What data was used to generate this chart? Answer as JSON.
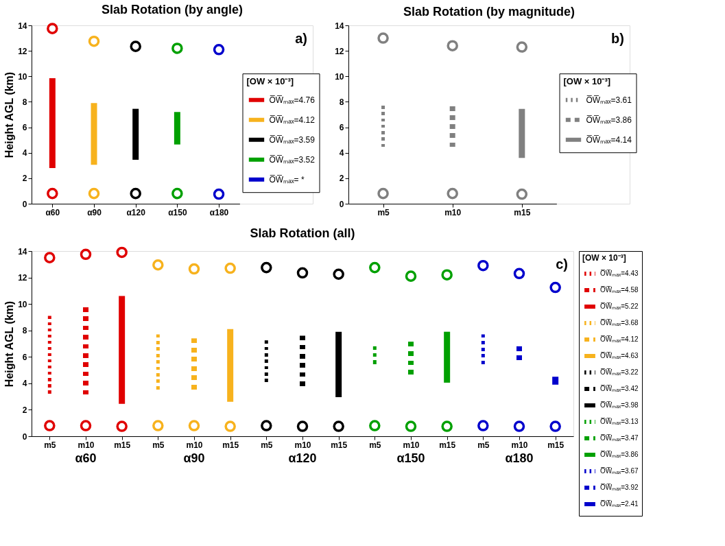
{
  "chart_data": [
    {
      "type": "bar",
      "title": "Slab Rotation (by angle)",
      "ylabel": "Height AGL (km)",
      "categories": [
        "α60",
        "α90",
        "α120",
        "α150",
        "α180"
      ],
      "ylim": [
        0,
        14
      ],
      "yticks": [
        0,
        2,
        4,
        6,
        8,
        10,
        12,
        14
      ],
      "legend": "right",
      "legend_title": "[OW × 10⁻³]",
      "annotations": [
        "a)"
      ],
      "series": [
        {
          "name": "O̅W̅ₘₐₓ=4.76",
          "color": "#e00000",
          "line_style": "solid",
          "base": [
            2.8,
            null,
            null,
            null,
            null
          ],
          "values": [
            7.05,
            null,
            null,
            null,
            null
          ]
        },
        {
          "name": "O̅W̅ₘₐₓ=4.12",
          "color": "#f7b21d",
          "line_style": "solid",
          "base": [
            null,
            3.05,
            null,
            null,
            null
          ],
          "values": [
            null,
            4.85,
            null,
            null,
            null
          ]
        },
        {
          "name": "O̅W̅ₘₐₓ=3.59",
          "color": "#000000",
          "line_style": "solid",
          "base": [
            null,
            null,
            3.45,
            null,
            null
          ],
          "values": [
            null,
            null,
            4.0,
            null,
            null
          ]
        },
        {
          "name": "O̅W̅ₘₐₓ=3.52",
          "color": "#00a000",
          "line_style": "solid",
          "base": [
            null,
            null,
            null,
            4.65,
            null
          ],
          "values": [
            null,
            null,
            null,
            2.55,
            null
          ]
        },
        {
          "name": "O̅W̅ₘₐₓ= *",
          "color": "#0000cc",
          "line_style": "solid",
          "base": [
            null,
            null,
            null,
            null,
            null
          ],
          "values": [
            null,
            null,
            null,
            null,
            null
          ]
        },
        {
          "type": "scatter",
          "marker": "circle",
          "colors": [
            "#e00000",
            "#f7b21d",
            "#000000",
            "#00a000",
            "#0000cc"
          ],
          "values": [
            13.75,
            12.75,
            12.35,
            12.2,
            12.1
          ]
        },
        {
          "type": "scatter",
          "marker": "circle",
          "colors": [
            "#e00000",
            "#f7b21d",
            "#000000",
            "#00a000",
            "#0000cc"
          ],
          "values": [
            0.8,
            0.8,
            0.8,
            0.8,
            0.75
          ]
        }
      ]
    },
    {
      "type": "bar",
      "title": "Slab Rotation (by magnitude)",
      "categories": [
        "m5",
        "m10",
        "m15"
      ],
      "ylim": [
        0,
        14
      ],
      "yticks": [
        0,
        2,
        4,
        6,
        8,
        10,
        12,
        14
      ],
      "legend": "right",
      "legend_title": "[OW × 10⁻³]",
      "annotations": [
        "b)"
      ],
      "series": [
        {
          "name": "O̅W̅ₘₐₓ=3.61",
          "color": "#808080",
          "line_style": "dotted",
          "base": [
            4.2,
            null,
            null
          ],
          "values": [
            3.5,
            null,
            null
          ]
        },
        {
          "name": "O̅W̅ₘₐₓ=3.86",
          "color": "#808080",
          "line_style": "dashed",
          "base": [
            null,
            4.1,
            null
          ],
          "values": [
            null,
            3.55,
            null
          ]
        },
        {
          "name": "O̅W̅ₘₐₓ=4.14",
          "color": "#808080",
          "line_style": "solid",
          "base": [
            null,
            null,
            3.6
          ],
          "values": [
            null,
            null,
            3.85
          ]
        },
        {
          "type": "scatter",
          "marker": "circle",
          "colors": [
            "#808080",
            "#808080",
            "#808080"
          ],
          "values": [
            13.0,
            12.4,
            12.3
          ]
        },
        {
          "type": "scatter",
          "marker": "circle",
          "colors": [
            "#808080",
            "#808080",
            "#808080"
          ],
          "values": [
            0.8,
            0.8,
            0.75
          ]
        }
      ]
    },
    {
      "type": "bar",
      "title": "Slab Rotation (all)",
      "ylabel": "Height AGL (km)",
      "categories": [
        "m5",
        "m10",
        "m15",
        "m5",
        "m10",
        "m15",
        "m5",
        "m10",
        "m15",
        "m5",
        "m10",
        "m15",
        "m5",
        "m10",
        "m15"
      ],
      "ylim": [
        0,
        14
      ],
      "yticks": [
        0,
        2,
        4,
        6,
        8,
        10,
        12,
        14
      ],
      "legend": "right",
      "legend_title": "[OW × 10⁻³]",
      "annotations": [
        "c)",
        "α60",
        "α90",
        "α120",
        "α150",
        "α180"
      ],
      "series": [
        {
          "name": "O̅W̅ₘₐₓ=4.43",
          "color": "#e00000",
          "line_style": "dotted",
          "base": [
            3.0,
            null,
            null,
            null,
            null,
            null,
            null,
            null,
            null,
            null,
            null,
            null,
            null,
            null,
            null
          ],
          "values": [
            6.1,
            null,
            null,
            null,
            null,
            null,
            null,
            null,
            null,
            null,
            null,
            null,
            null,
            null,
            null
          ]
        },
        {
          "name": "O̅W̅ₘₐₓ=4.58",
          "color": "#e00000",
          "line_style": "dashed",
          "base": [
            null,
            2.8,
            null,
            null,
            null,
            null,
            null,
            null,
            null,
            null,
            null,
            null,
            null,
            null,
            null
          ],
          "values": [
            null,
            6.95,
            null,
            null,
            null,
            null,
            null,
            null,
            null,
            null,
            null,
            null,
            null,
            null,
            null
          ]
        },
        {
          "name": "O̅W̅ₘₐₓ=5.22",
          "color": "#e00000",
          "line_style": "solid",
          "base": [
            null,
            null,
            2.45,
            null,
            null,
            null,
            null,
            null,
            null,
            null,
            null,
            null,
            null,
            null,
            null
          ],
          "values": [
            null,
            null,
            8.15,
            null,
            null,
            null,
            null,
            null,
            null,
            null,
            null,
            null,
            null,
            null,
            null
          ]
        },
        {
          "name": "O̅W̅ₘₐₓ=3.68",
          "color": "#f7b21d",
          "line_style": "dotted",
          "base": [
            null,
            null,
            null,
            3.3,
            null,
            null,
            null,
            null,
            null,
            null,
            null,
            null,
            null,
            null,
            null
          ],
          "values": [
            null,
            null,
            null,
            4.4,
            null,
            null,
            null,
            null,
            null,
            null,
            null,
            null,
            null,
            null,
            null
          ]
        },
        {
          "name": "O̅W̅ₘₐₓ=4.12",
          "color": "#f7b21d",
          "line_style": "dashed",
          "base": [
            null,
            null,
            null,
            null,
            3.2,
            null,
            null,
            null,
            null,
            null,
            null,
            null,
            null,
            null,
            null
          ],
          "values": [
            null,
            null,
            null,
            null,
            4.2,
            null,
            null,
            null,
            null,
            null,
            null,
            null,
            null,
            null,
            null
          ]
        },
        {
          "name": "O̅W̅ₘₐₓ=4.63",
          "color": "#f7b21d",
          "line_style": "solid",
          "base": [
            null,
            null,
            null,
            null,
            null,
            2.6,
            null,
            null,
            null,
            null,
            null,
            null,
            null,
            null,
            null
          ],
          "values": [
            null,
            null,
            null,
            null,
            null,
            5.5,
            null,
            null,
            null,
            null,
            null,
            null,
            null,
            null,
            null
          ]
        },
        {
          "name": "O̅W̅ₘₐₓ=3.22",
          "color": "#000000",
          "line_style": "dotted",
          "base": [
            null,
            null,
            null,
            null,
            null,
            null,
            3.85,
            null,
            null,
            null,
            null,
            null,
            null,
            null,
            null
          ],
          "values": [
            null,
            null,
            null,
            null,
            null,
            null,
            3.4,
            null,
            null,
            null,
            null,
            null,
            null,
            null,
            null
          ]
        },
        {
          "name": "O̅W̅ₘₐₓ=3.42",
          "color": "#000000",
          "line_style": "dashed",
          "base": [
            null,
            null,
            null,
            null,
            null,
            null,
            null,
            3.45,
            null,
            null,
            null,
            null,
            null,
            null,
            null
          ],
          "values": [
            null,
            null,
            null,
            null,
            null,
            null,
            null,
            4.15,
            null,
            null,
            null,
            null,
            null,
            null,
            null
          ]
        },
        {
          "name": "O̅W̅ₘₐₓ=3.98",
          "color": "#000000",
          "line_style": "solid",
          "base": [
            null,
            null,
            null,
            null,
            null,
            null,
            null,
            null,
            2.95,
            null,
            null,
            null,
            null,
            null,
            null
          ],
          "values": [
            null,
            null,
            null,
            null,
            null,
            null,
            null,
            null,
            4.95,
            null,
            null,
            null,
            null,
            null,
            null
          ]
        },
        {
          "name": "O̅W̅ₘₐₓ=3.13",
          "color": "#00a000",
          "line_style": "dotted",
          "base": [
            null,
            null,
            null,
            null,
            null,
            null,
            null,
            null,
            null,
            5.2,
            null,
            null,
            null,
            null,
            null
          ],
          "values": [
            null,
            null,
            null,
            null,
            null,
            null,
            null,
            null,
            null,
            1.6,
            null,
            null,
            null,
            null,
            null
          ]
        },
        {
          "name": "O̅W̅ₘₐₓ=3.47",
          "color": "#00a000",
          "line_style": "dashed",
          "base": [
            null,
            null,
            null,
            null,
            null,
            null,
            null,
            null,
            null,
            null,
            4.3,
            null,
            null,
            null,
            null
          ],
          "values": [
            null,
            null,
            null,
            null,
            null,
            null,
            null,
            null,
            null,
            null,
            2.85,
            null,
            null,
            null,
            null
          ]
        },
        {
          "name": "O̅W̅ₘₐₓ=3.86",
          "color": "#00a000",
          "line_style": "solid",
          "base": [
            null,
            null,
            null,
            null,
            null,
            null,
            null,
            null,
            null,
            null,
            null,
            4.05,
            null,
            null,
            null
          ],
          "values": [
            null,
            null,
            null,
            null,
            null,
            null,
            null,
            null,
            null,
            null,
            null,
            3.85,
            null,
            null,
            null
          ]
        },
        {
          "name": "O̅W̅ₘₐₓ=3.67",
          "color": "#0000cc",
          "line_style": "dotted",
          "base": [
            null,
            null,
            null,
            null,
            null,
            null,
            null,
            null,
            null,
            null,
            null,
            null,
            5.2,
            null,
            null
          ],
          "values": [
            null,
            null,
            null,
            null,
            null,
            null,
            null,
            null,
            null,
            null,
            null,
            null,
            2.5,
            null,
            null
          ]
        },
        {
          "name": "O̅W̅ₘₐₓ=3.92",
          "color": "#0000cc",
          "line_style": "dashed",
          "base": [
            null,
            null,
            null,
            null,
            null,
            null,
            null,
            null,
            null,
            null,
            null,
            null,
            null,
            5.4,
            null
          ],
          "values": [
            null,
            null,
            null,
            null,
            null,
            null,
            null,
            null,
            null,
            null,
            null,
            null,
            null,
            1.4,
            null
          ]
        },
        {
          "name": "O̅W̅ₘₐₓ=2.41",
          "color": "#0000cc",
          "line_style": "solid",
          "base": [
            null,
            null,
            null,
            null,
            null,
            null,
            null,
            null,
            null,
            null,
            null,
            null,
            null,
            null,
            3.9
          ],
          "values": [
            null,
            null,
            null,
            null,
            null,
            null,
            null,
            null,
            null,
            null,
            null,
            null,
            null,
            null,
            0.6
          ]
        },
        {
          "type": "scatter",
          "marker": "circle",
          "colors": [
            "#e00000",
            "#e00000",
            "#e00000",
            "#f7b21d",
            "#f7b21d",
            "#f7b21d",
            "#000000",
            "#000000",
            "#000000",
            "#00a000",
            "#00a000",
            "#00a000",
            "#0000cc",
            "#0000cc",
            "#0000cc"
          ],
          "values": [
            13.5,
            13.75,
            13.9,
            12.95,
            12.65,
            12.7,
            12.75,
            12.35,
            12.25,
            12.75,
            12.1,
            12.2,
            12.9,
            12.3,
            11.25
          ]
        },
        {
          "type": "scatter",
          "marker": "circle",
          "colors": [
            "#e00000",
            "#e00000",
            "#e00000",
            "#f7b21d",
            "#f7b21d",
            "#f7b21d",
            "#000000",
            "#000000",
            "#000000",
            "#00a000",
            "#00a000",
            "#00a000",
            "#0000cc",
            "#0000cc",
            "#0000cc"
          ],
          "values": [
            0.8,
            0.8,
            0.75,
            0.8,
            0.8,
            0.75,
            0.8,
            0.75,
            0.75,
            0.8,
            0.75,
            0.75,
            0.8,
            0.75,
            0.75
          ]
        }
      ]
    }
  ]
}
